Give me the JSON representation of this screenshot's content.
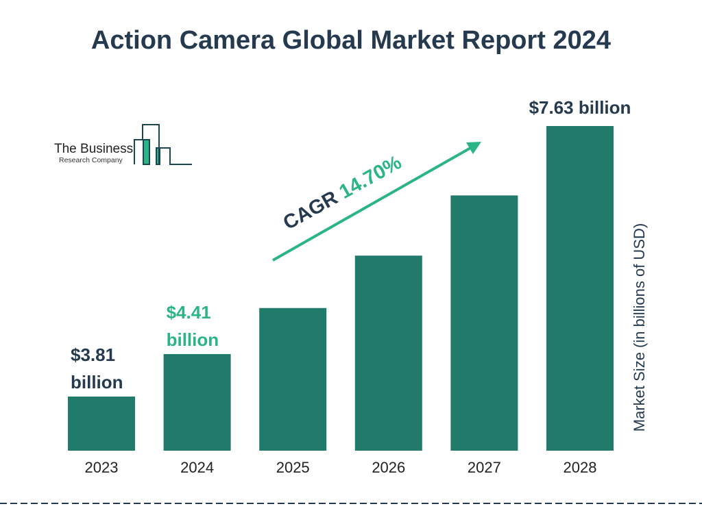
{
  "chart_data": {
    "type": "bar",
    "title": "Action Camera Global Market Report 2024",
    "categories": [
      "2023",
      "2024",
      "2025",
      "2026",
      "2027",
      "2028"
    ],
    "values": [
      3.81,
      4.41,
      5.06,
      5.8,
      6.65,
      7.63
    ],
    "data_labels": {
      "2023": [
        "$3.81",
        "billion"
      ],
      "2024": [
        "$4.41",
        "billion"
      ],
      "2028": [
        "$7.63 billion"
      ]
    },
    "ylabel": "Market Size (in billions of USD)",
    "annotation": {
      "prefix": "CAGR ",
      "value": "14.70%"
    },
    "grid": false,
    "colors": {
      "bar": "#217b6b",
      "title": "#253a4f",
      "accent": "#2bb584",
      "label_dark": "#253a4f"
    }
  },
  "logo": {
    "line1": "The Business",
    "line2": "Research Company"
  }
}
